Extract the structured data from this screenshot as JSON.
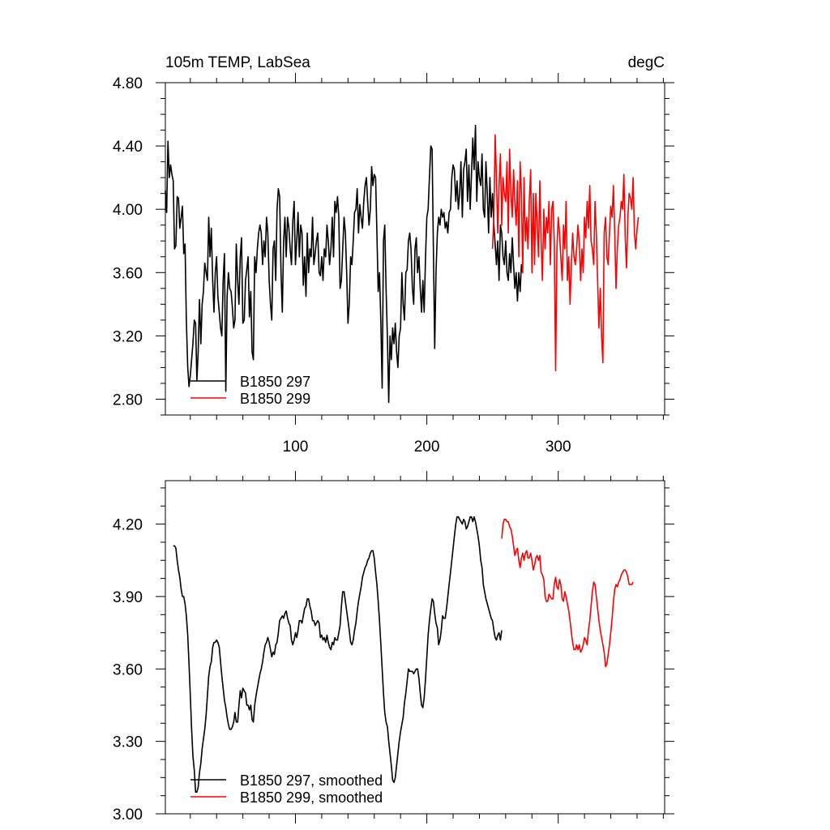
{
  "chart_data": [
    {
      "type": "line",
      "title_left": "105m TEMP, LabSea",
      "title_right": "degC",
      "xlabel": "",
      "ylabel": "",
      "xlim": [
        1,
        381
      ],
      "ylim": [
        2.7,
        4.8
      ],
      "xticks": [
        100,
        200,
        300
      ],
      "xtick_labels": [
        "100",
        "200",
        "300"
      ],
      "yticks": [
        2.8,
        3.2,
        3.6,
        4.0,
        4.4,
        4.8
      ],
      "ytick_labels": [
        "2.80",
        "3.20",
        "3.60",
        "4.00",
        "4.40",
        "4.80"
      ],
      "grid": false,
      "legend_position": "bottom-left",
      "series": [
        {
          "name": "B1850 297",
          "color": "#000000",
          "x_start": 1,
          "values": [
            4.12,
            3.98,
            4.43,
            4.2,
            4.28,
            4.22,
            4.18,
            3.75,
            3.77,
            4.08,
            4.07,
            3.88,
            3.95,
            4.02,
            3.72,
            3.78,
            3.3,
            3.0,
            2.88,
            2.95,
            3.05,
            3.15,
            3.3,
            3.28,
            2.92,
            3.1,
            3.43,
            3.15,
            3.4,
            3.48,
            3.66,
            3.6,
            3.55,
            3.95,
            3.7,
            3.88,
            3.55,
            3.35,
            3.6,
            3.7,
            3.45,
            3.35,
            3.25,
            3.2,
            3.55,
            3.72,
            2.85,
            3.45,
            3.6,
            3.5,
            3.48,
            3.38,
            3.25,
            3.3,
            3.78,
            3.55,
            3.4,
            3.7,
            3.82,
            3.28,
            3.3,
            3.55,
            3.62,
            3.7,
            3.32,
            3.48,
            3.1,
            3.05,
            3.7,
            3.6,
            3.75,
            3.85,
            3.9,
            3.85,
            3.65,
            3.8,
            3.7,
            3.95,
            3.85,
            3.55,
            3.4,
            3.3,
            3.75,
            3.8,
            3.55,
            4.0,
            4.13,
            4.08,
            3.6,
            3.35,
            3.8,
            3.95,
            3.7,
            3.95,
            3.88,
            3.75,
            3.65,
            3.92,
            4.05,
            3.65,
            3.8,
            3.98,
            3.7,
            3.9,
            3.85,
            3.52,
            3.7,
            3.45,
            3.85,
            3.6,
            3.75,
            3.7,
            3.95,
            3.65,
            3.72,
            3.8,
            3.85,
            3.6,
            3.58,
            3.7,
            3.55,
            3.75,
            3.7,
            3.9,
            3.8,
            3.65,
            3.75,
            3.95,
            3.7,
            4.05,
            3.98,
            4.08,
            3.95,
            3.5,
            3.55,
            3.75,
            3.95,
            3.85,
            3.6,
            3.28,
            3.4,
            3.7,
            3.65,
            3.8,
            3.98,
            4.0,
            4.13,
            3.85,
            4.03,
            3.95,
            3.88,
            4.05,
            4.15,
            4.2,
            4.05,
            3.9,
            4.0,
            4.27,
            4.15,
            4.22,
            4.2,
            3.85,
            3.48,
            3.6,
            3.28,
            2.87,
            3.8,
            3.9,
            3.5,
            3.18,
            2.78,
            3.2,
            3.05,
            3.25,
            3.15,
            3.28,
            3.1,
            3.0,
            3.2,
            3.25,
            3.6,
            3.4,
            3.3,
            3.6,
            3.62,
            3.8,
            3.85,
            3.75,
            3.5,
            3.4,
            3.75,
            3.82,
            3.6,
            3.7,
            3.5,
            3.35,
            3.55,
            3.35,
            3.7,
            3.95,
            4.0,
            4.2,
            4.4,
            4.38,
            3.75,
            3.12,
            3.6,
            3.85,
            3.95,
            3.9,
            4.0,
            3.95,
            3.98,
            3.88,
            3.92,
            3.85,
            3.98,
            4.0,
            4.2,
            4.28,
            4.25,
            4.05,
            4.18,
            4.0,
            4.1,
            4.3,
            3.95,
            4.25,
            4.3,
            4.38,
            4.05,
            4.28,
            4.0,
            4.22,
            4.45,
            4.25,
            4.53,
            4.05,
            4.3,
            4.2,
            4.15,
            4.35,
            4.0,
            3.95,
            4.3,
            4.1,
            3.85,
            4.2,
            3.95,
            4.1,
            3.9,
            3.78,
            3.65,
            3.8,
            3.55,
            3.9,
            3.85,
            3.7,
            3.65,
            3.8,
            3.6,
            3.55,
            3.72,
            3.6,
            3.82,
            3.65,
            3.5,
            3.6,
            3.42,
            3.6,
            3.48,
            3.65,
            3.6
          ]
        },
        {
          "name": "B1850 299",
          "color": "#ff0000",
          "x_start": 250,
          "values": [
            3.75,
            3.95,
            4.47,
            4.2,
            3.85,
            4.15,
            4.35,
            3.9,
            4.2,
            4.1,
            4.05,
            4.3,
            3.85,
            4.38,
            4.1,
            3.95,
            4.25,
            4.05,
            3.9,
            4.18,
            3.7,
            4.3,
            4.1,
            3.6,
            4.2,
            3.8,
            3.95,
            3.75,
            4.05,
            4.25,
            3.6,
            4.1,
            3.65,
            4.1,
            3.9,
            3.7,
            4.18,
            3.8,
            3.55,
            4.0,
            3.75,
            3.95,
            3.85,
            4.05,
            3.65,
            4.0,
            4.05,
            3.8,
            2.98,
            3.75,
            3.95,
            3.85,
            3.7,
            3.55,
            3.9,
            3.75,
            4.05,
            3.55,
            3.7,
            3.4,
            3.65,
            3.85,
            3.7,
            3.65,
            3.75,
            3.9,
            3.8,
            3.55,
            3.75,
            3.6,
            3.95,
            3.82,
            4.05,
            3.88,
            4.15,
            3.8,
            3.75,
            3.65,
            4.05,
            3.85,
            3.55,
            3.25,
            3.5,
            3.2,
            3.03,
            3.85,
            3.95,
            3.7,
            3.65,
            3.85,
            4.02,
            3.95,
            4.15,
            3.85,
            3.5,
            3.75,
            3.9,
            3.95,
            4.05,
            4.0,
            4.22,
            3.82,
            3.63,
            3.95,
            4.1,
            4.07,
            4.0,
            4.2,
            3.85,
            3.75,
            3.88,
            3.95
          ]
        }
      ]
    },
    {
      "type": "line",
      "title_left": "",
      "title_right": "",
      "xlabel": "",
      "ylabel": "",
      "xlim": [
        1,
        381
      ],
      "ylim": [
        3.0,
        4.38
      ],
      "xticks": [
        100,
        200,
        300
      ],
      "xtick_labels": [],
      "yticks": [
        3.0,
        3.3,
        3.6,
        3.9,
        4.2
      ],
      "ytick_labels": [
        "3.00",
        "3.30",
        "3.60",
        "3.90",
        "4.20"
      ],
      "grid": false,
      "legend_position": "bottom-left",
      "series": [
        {
          "name": "B1850 297, smoothed",
          "color": "#000000",
          "x_start": 7,
          "values": [
            4.11,
            4.11,
            4.1,
            4.05,
            4.01,
            3.98,
            3.93,
            3.9,
            3.9,
            3.87,
            3.82,
            3.74,
            3.62,
            3.49,
            3.35,
            3.24,
            3.18,
            3.09,
            3.09,
            3.11,
            3.17,
            3.21,
            3.27,
            3.31,
            3.35,
            3.41,
            3.49,
            3.57,
            3.61,
            3.63,
            3.69,
            3.71,
            3.71,
            3.72,
            3.71,
            3.69,
            3.63,
            3.57,
            3.52,
            3.47,
            3.44,
            3.4,
            3.37,
            3.35,
            3.35,
            3.36,
            3.38,
            3.42,
            3.38,
            3.38,
            3.45,
            3.51,
            3.48,
            3.52,
            3.51,
            3.5,
            3.45,
            3.45,
            3.43,
            3.45,
            3.39,
            3.38,
            3.45,
            3.49,
            3.52,
            3.55,
            3.58,
            3.6,
            3.63,
            3.67,
            3.7,
            3.71,
            3.73,
            3.71,
            3.68,
            3.65,
            3.67,
            3.66,
            3.7,
            3.71,
            3.75,
            3.8,
            3.81,
            3.82,
            3.81,
            3.83,
            3.84,
            3.81,
            3.79,
            3.78,
            3.72,
            3.7,
            3.72,
            3.75,
            3.73,
            3.76,
            3.8,
            3.8,
            3.79,
            3.82,
            3.85,
            3.86,
            3.89,
            3.89,
            3.86,
            3.84,
            3.8,
            3.8,
            3.78,
            3.79,
            3.8,
            3.79,
            3.73,
            3.74,
            3.72,
            3.73,
            3.71,
            3.74,
            3.71,
            3.69,
            3.68,
            3.71,
            3.7,
            3.73,
            3.72,
            3.72,
            3.75,
            3.78,
            3.86,
            3.92,
            3.92,
            3.88,
            3.84,
            3.8,
            3.76,
            3.71,
            3.7,
            3.72,
            3.76,
            3.79,
            3.84,
            3.88,
            3.91,
            3.94,
            3.98,
            4.0,
            4.02,
            4.03,
            4.05,
            4.06,
            4.08,
            4.09,
            4.09,
            4.06,
            4.0,
            3.95,
            3.88,
            3.8,
            3.7,
            3.6,
            3.5,
            3.42,
            3.38,
            3.36,
            3.3,
            3.25,
            3.2,
            3.14,
            3.13,
            3.15,
            3.2,
            3.25,
            3.3,
            3.34,
            3.37,
            3.4,
            3.46,
            3.5,
            3.55,
            3.6,
            3.59,
            3.59,
            3.59,
            3.58,
            3.59,
            3.6,
            3.6,
            3.56,
            3.5,
            3.45,
            3.44,
            3.48,
            3.56,
            3.65,
            3.74,
            3.8,
            3.85,
            3.89,
            3.88,
            3.83,
            3.79,
            3.77,
            3.7,
            3.72,
            3.76,
            3.82,
            3.81,
            3.81,
            3.85,
            3.9,
            3.95,
            4.0,
            4.05,
            4.1,
            4.15,
            4.2,
            4.23,
            4.23,
            4.22,
            4.21,
            4.2,
            4.22,
            4.21,
            4.18,
            4.19,
            4.21,
            4.23,
            4.23,
            4.21,
            4.23,
            4.21,
            4.18,
            4.15,
            4.11,
            4.05,
            4.02,
            3.95,
            3.92,
            3.89,
            3.87,
            3.85,
            3.83,
            3.81,
            3.8,
            3.76,
            3.73,
            3.72,
            3.74,
            3.75,
            3.72,
            3.76
          ]
        },
        {
          "name": "B1850 299, smoothed",
          "color": "#ff0000",
          "x_start": 257,
          "values": [
            4.14,
            4.2,
            4.22,
            4.22,
            4.21,
            4.21,
            4.19,
            4.18,
            4.15,
            4.11,
            4.07,
            4.09,
            4.1,
            4.05,
            4.02,
            4.06,
            4.08,
            4.05,
            4.08,
            4.09,
            4.06,
            4.06,
            4.08,
            4.05,
            4.01,
            4.03,
            4.06,
            4.07,
            4.05,
            4.07,
            4.0,
            3.99,
            3.97,
            3.9,
            3.88,
            3.88,
            3.91,
            3.9,
            3.89,
            3.89,
            3.95,
            3.98,
            3.94,
            3.93,
            3.97,
            3.95,
            3.89,
            3.88,
            3.92,
            3.9,
            3.87,
            3.84,
            3.8,
            3.75,
            3.71,
            3.68,
            3.68,
            3.7,
            3.68,
            3.7,
            3.67,
            3.68,
            3.7,
            3.73,
            3.72,
            3.7,
            3.76,
            3.8,
            3.86,
            3.92,
            3.96,
            3.95,
            3.9,
            3.85,
            3.8,
            3.76,
            3.73,
            3.7,
            3.67,
            3.61,
            3.62,
            3.66,
            3.7,
            3.75,
            3.81,
            3.88,
            3.93,
            3.95,
            3.94,
            3.96,
            3.97,
            3.99,
            4.0,
            4.01,
            4.01,
            4.0,
            3.98,
            3.95,
            3.95,
            3.95,
            3.96
          ]
        }
      ]
    }
  ]
}
